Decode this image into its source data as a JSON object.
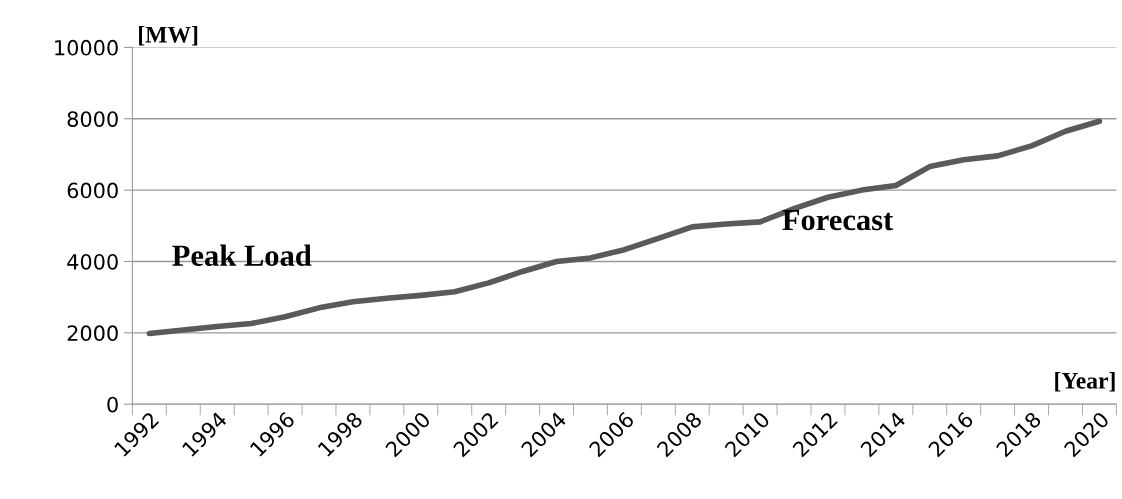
{
  "chart_data": {
    "type": "line",
    "ylabel": "[MW]",
    "xlabel": "[Year]",
    "annotations": [
      "Peak Load",
      "Forecast"
    ],
    "categories": [
      "1992",
      null,
      "1994",
      null,
      "1996",
      null,
      "1998",
      null,
      "2000",
      null,
      "2002",
      null,
      "2004",
      null,
      "2006",
      null,
      "2008",
      null,
      "2010",
      null,
      "2012",
      null,
      "2014",
      null,
      "2016",
      null,
      "2018",
      null,
      "2020"
    ],
    "series": [
      {
        "color": "#5a5a5a",
        "values": [
          1980,
          2080,
          2180,
          2260,
          2450,
          2700,
          2870,
          2970,
          3050,
          3150,
          3400,
          3720,
          4000,
          4100,
          4330,
          4650,
          4970,
          5050,
          5110,
          5480,
          5800,
          6000,
          6130,
          6660,
          6850,
          6960,
          7240,
          7650,
          7930
        ]
      }
    ],
    "ylim": [
      0,
      10000
    ],
    "yticks": [
      0,
      2000,
      4000,
      6000,
      8000,
      10000
    ],
    "grid": "y",
    "legend": false,
    "marker": "none",
    "line_style": "solid"
  }
}
